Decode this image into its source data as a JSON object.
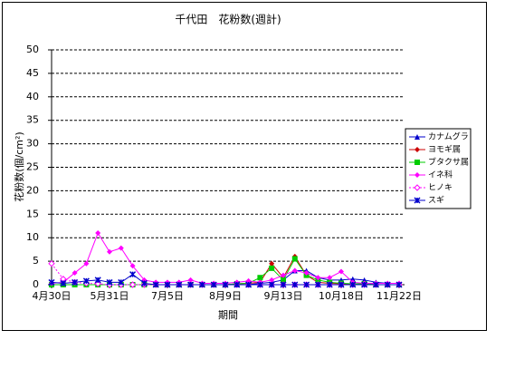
{
  "chart_data": {
    "type": "line",
    "title": "千代田　花粉数(週計)",
    "xlabel": "期間",
    "ylabel": "花粉数(個/cm²)",
    "categories": [
      "4月30日",
      null,
      null,
      null,
      null,
      "5月31日",
      null,
      null,
      null,
      null,
      "7月5日",
      null,
      null,
      null,
      null,
      "8月9日",
      null,
      null,
      null,
      null,
      "9月13日",
      null,
      null,
      null,
      null,
      "10月18日",
      null,
      null,
      null,
      null,
      "11月22日"
    ],
    "ylim": [
      0,
      50
    ],
    "yticks": [
      0,
      5,
      10,
      15,
      20,
      25,
      30,
      35,
      40,
      45,
      50
    ],
    "grid": true,
    "legend": "right",
    "series": [
      {
        "name": "カナムグラ",
        "color": "#0000cc",
        "marker": "triangle",
        "values": [
          0,
          0,
          0,
          0,
          0,
          0,
          0,
          0,
          0,
          0,
          0,
          0,
          0,
          0,
          0,
          0,
          0,
          0,
          0.3,
          0.5,
          1,
          3,
          3,
          1.5,
          1,
          1,
          1.2,
          1,
          0.5,
          0.3,
          0.3
        ]
      },
      {
        "name": "ヨモギ属",
        "color": "#cc0000",
        "marker": "diamond",
        "values": [
          0,
          0,
          0,
          0,
          0,
          0,
          0,
          0,
          0,
          0,
          0,
          0,
          0,
          0,
          0,
          0,
          0.2,
          0.3,
          0.5,
          4.5,
          1.5,
          6,
          2,
          0.5,
          0.3,
          0.2,
          0.2,
          0.2,
          0,
          0,
          0
        ]
      },
      {
        "name": "ブタクサ属",
        "color": "#00cc00",
        "marker": "square",
        "values": [
          0,
          0,
          0,
          0,
          0,
          0,
          0,
          0,
          0,
          0,
          0,
          0,
          0,
          0,
          0,
          0,
          0.2,
          0.3,
          1.5,
          3.5,
          1,
          5.5,
          2,
          1,
          0.5,
          0.3,
          0.2,
          0.2,
          0,
          0,
          0
        ]
      },
      {
        "name": "イネ科",
        "color": "#ff00ff",
        "marker": "diamond",
        "values": [
          0.3,
          0.5,
          2.5,
          4.5,
          11,
          7,
          7.8,
          4,
          1,
          0.5,
          0.5,
          0.5,
          1,
          0.3,
          0.3,
          0.3,
          0.5,
          0.8,
          0.5,
          1,
          2,
          3,
          2.5,
          1.5,
          1.5,
          2.8,
          0.5,
          0.3,
          0.3,
          0.3,
          0.3
        ]
      },
      {
        "name": "ヒノキ",
        "color": "#ff00ff",
        "marker": "diamond-open",
        "dash": true,
        "values": [
          4.5,
          1.2,
          0.5,
          0.3,
          0.2,
          0,
          0,
          0,
          0,
          0,
          0,
          0,
          0,
          0,
          0,
          0,
          0,
          0,
          0,
          0,
          0,
          0,
          0,
          0,
          0,
          0,
          0,
          0,
          0,
          0,
          0
        ]
      },
      {
        "name": "スギ",
        "color": "#0000cc",
        "marker": "star",
        "values": [
          0.5,
          0.3,
          0.5,
          0.8,
          1,
          0.5,
          0.5,
          2.2,
          0.3,
          0,
          0,
          0,
          0,
          0,
          0,
          0,
          0,
          0,
          0,
          0,
          0,
          0,
          0,
          0,
          0,
          0,
          0,
          0,
          0,
          0,
          0
        ]
      }
    ]
  }
}
